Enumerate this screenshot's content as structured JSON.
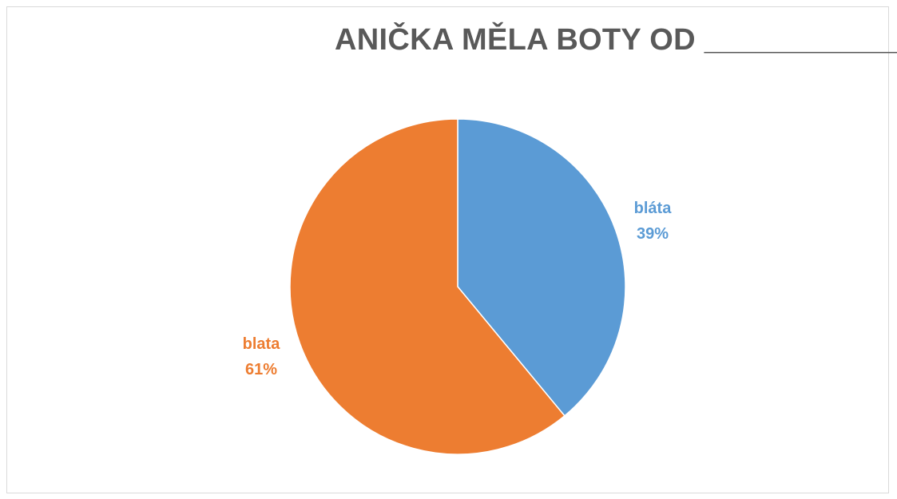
{
  "chart_data": {
    "type": "pie",
    "title": "ANIČKA MĚLA BOTY OD ____________",
    "slices": [
      {
        "label": "bláta",
        "value": 39,
        "value_label": "39%",
        "color": "#5b9bd5"
      },
      {
        "label": "blata",
        "value": 61,
        "value_label": "61%",
        "color": "#ed7d31"
      }
    ],
    "legend": "none"
  }
}
